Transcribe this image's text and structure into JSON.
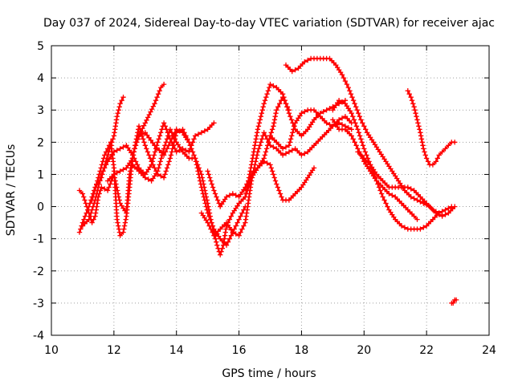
{
  "chart_data": {
    "type": "scatter",
    "title": "Day 037 of 2024, Sidereal Day-to-day VTEC variation (SDTVAR) for receiver ajac",
    "xlabel": "GPS time / hours",
    "ylabel": "SDTVAR / TECUs",
    "xlim": [
      10,
      24
    ],
    "ylim": [
      -4,
      5
    ],
    "xticks": [
      10,
      12,
      14,
      16,
      18,
      20,
      22,
      24
    ],
    "yticks": [
      -4,
      -3,
      -2,
      -1,
      0,
      1,
      2,
      3,
      4,
      5
    ],
    "grid": true,
    "marker": "+",
    "color": "#ff0000",
    "series": [
      {
        "name": "s1",
        "x": [
          10.9,
          11.0,
          11.2,
          11.4,
          11.6,
          11.8,
          12.0,
          12.1,
          12.2,
          12.3
        ],
        "y": [
          -0.8,
          -0.5,
          0.0,
          0.6,
          0.9,
          1.6,
          2.2,
          2.8,
          3.2,
          3.4
        ]
      },
      {
        "name": "s2",
        "x": [
          10.9,
          11.0,
          11.1,
          11.2,
          11.3,
          11.4,
          11.5,
          11.6,
          11.8,
          12.0,
          12.2,
          12.4,
          12.5,
          12.7,
          13.0,
          13.3,
          13.5,
          13.6
        ],
        "y": [
          0.5,
          0.4,
          0.1,
          -0.2,
          -0.5,
          -0.3,
          0.3,
          0.6,
          0.5,
          1.0,
          0.1,
          -0.2,
          1.0,
          2.0,
          2.6,
          3.2,
          3.7,
          3.8
        ]
      },
      {
        "name": "s3",
        "x": [
          11.0,
          11.2,
          11.4,
          11.6,
          11.8,
          12.0,
          12.2,
          12.4,
          12.6,
          12.8,
          13.0,
          13.2,
          13.4,
          13.6,
          13.8,
          14.0,
          14.2,
          14.4,
          14.6,
          14.8,
          15.0,
          15.2
        ],
        "y": [
          -0.6,
          -0.4,
          0.2,
          1.0,
          1.4,
          1.7,
          1.8,
          1.9,
          1.6,
          1.2,
          1.0,
          1.3,
          2.0,
          2.6,
          2.1,
          1.7,
          1.8,
          1.7,
          2.2,
          2.3,
          2.4,
          2.6
        ]
      },
      {
        "name": "s4",
        "x": [
          11.3,
          11.5,
          11.7,
          11.9,
          12.0,
          12.1,
          12.2,
          12.3,
          12.4,
          12.5,
          12.6,
          12.8,
          13.0,
          13.3,
          13.6,
          13.8,
          14.0,
          14.2,
          14.4
        ],
        "y": [
          0.2,
          0.9,
          1.6,
          2.0,
          1.2,
          -0.4,
          -0.9,
          -0.8,
          -0.3,
          0.6,
          1.6,
          2.2,
          2.3,
          1.9,
          1.6,
          2.0,
          2.4,
          2.3,
          2.0
        ]
      },
      {
        "name": "s5",
        "x": [
          11.8,
          12.0,
          12.2,
          12.4,
          12.6,
          12.8,
          13.0,
          13.2,
          13.4,
          13.6,
          13.8,
          14.0,
          14.2,
          14.4,
          14.6,
          14.8,
          15.0,
          15.2,
          15.4,
          15.6,
          15.8,
          16.0,
          16.2
        ],
        "y": [
          0.8,
          1.0,
          1.1,
          1.2,
          1.5,
          2.5,
          1.9,
          1.4,
          1.0,
          0.9,
          1.5,
          2.3,
          2.4,
          2.0,
          1.5,
          0.6,
          -0.2,
          -0.7,
          -1.0,
          -1.2,
          -0.8,
          -0.4,
          0.0
        ]
      },
      {
        "name": "s6",
        "x": [
          12.6,
          12.8,
          13.0,
          13.2,
          13.4,
          13.6,
          13.8,
          14.0,
          14.2,
          14.4,
          14.6,
          14.8,
          15.0,
          15.1,
          15.2,
          15.3,
          15.4,
          15.5,
          15.6,
          15.8,
          16.0
        ],
        "y": [
          1.3,
          1.1,
          0.9,
          0.8,
          1.1,
          1.8,
          2.4,
          2.0,
          1.7,
          1.5,
          1.5,
          1.0,
          0.1,
          -0.4,
          -0.8,
          -1.2,
          -1.5,
          -1.2,
          -0.6,
          -0.2,
          0.1
        ]
      },
      {
        "name": "s7",
        "x": [
          14.8,
          15.0,
          15.2,
          15.4,
          15.6,
          15.8,
          16.0,
          16.2,
          16.4,
          16.6,
          16.8,
          17.0,
          17.2,
          17.4,
          17.6,
          17.8,
          18.0,
          18.2,
          18.4,
          18.6,
          18.8,
          19.0,
          19.2,
          19.4,
          19.6
        ],
        "y": [
          -0.2,
          -0.5,
          -0.9,
          -0.7,
          -0.5,
          -0.8,
          -0.9,
          -0.5,
          0.8,
          1.7,
          2.3,
          1.9,
          1.8,
          1.6,
          1.7,
          1.8,
          1.6,
          1.7,
          1.9,
          2.1,
          2.3,
          2.5,
          2.6,
          2.5,
          2.4
        ]
      },
      {
        "name": "s8",
        "x": [
          15.0,
          15.2,
          15.4,
          15.6,
          15.8,
          16.0,
          16.2,
          16.4,
          16.6,
          16.8,
          17.0,
          17.2,
          17.4,
          17.6,
          17.8,
          18.0,
          18.2,
          18.4,
          18.6,
          18.8,
          19.0,
          19.2,
          19.4,
          19.6
        ],
        "y": [
          1.1,
          0.5,
          0.0,
          0.3,
          0.4,
          0.3,
          0.6,
          1.0,
          1.2,
          1.5,
          2.2,
          2.0,
          1.8,
          1.9,
          2.6,
          2.9,
          3.0,
          3.0,
          2.8,
          2.6,
          2.5,
          2.7,
          2.8,
          2.6
        ]
      },
      {
        "name": "s9",
        "x": [
          16.0,
          16.2,
          16.4,
          16.6,
          16.8,
          17.0,
          17.2,
          17.4,
          17.6,
          17.8,
          18.0,
          18.2,
          18.4,
          18.6,
          18.8,
          19.0,
          19.2,
          19.4
        ],
        "y": [
          0.1,
          0.3,
          1.3,
          2.4,
          3.2,
          3.8,
          3.7,
          3.5,
          2.9,
          2.4,
          2.2,
          2.4,
          2.7,
          2.9,
          3.0,
          3.1,
          3.2,
          3.3
        ]
      },
      {
        "name": "s10",
        "x": [
          16.2,
          16.4,
          16.6,
          16.8,
          17.0,
          17.2,
          17.4,
          17.6,
          17.8,
          18.0,
          18.2,
          18.4
        ],
        "y": [
          0.3,
          0.9,
          1.2,
          1.4,
          1.3,
          0.7,
          0.2,
          0.2,
          0.4,
          0.6,
          0.9,
          1.2
        ]
      },
      {
        "name": "s11",
        "x": [
          17.0,
          17.1,
          17.2,
          17.3,
          17.4,
          17.6
        ],
        "y": [
          2.2,
          2.5,
          3.0,
          3.2,
          3.4,
          3.0
        ]
      },
      {
        "name": "s12",
        "x": [
          17.5,
          17.7,
          17.9,
          18.1,
          18.3,
          18.5,
          18.7,
          18.9,
          19.1,
          19.3,
          19.5,
          19.7,
          19.9,
          20.1,
          20.3,
          20.5,
          20.7,
          20.9,
          21.1,
          21.3,
          21.5,
          21.7,
          21.9,
          22.1,
          22.3,
          22.5,
          22.7,
          22.9
        ],
        "y": [
          4.4,
          4.2,
          4.3,
          4.5,
          4.6,
          4.6,
          4.6,
          4.6,
          4.4,
          4.1,
          3.7,
          3.2,
          2.7,
          2.3,
          2.0,
          1.7,
          1.4,
          1.1,
          0.8,
          0.5,
          0.3,
          0.2,
          0.1,
          0.0,
          -0.2,
          -0.3,
          -0.2,
          0.0
        ]
      },
      {
        "name": "s13",
        "x": [
          19.0,
          19.2,
          19.4,
          19.6,
          19.8,
          20.0,
          20.2,
          20.4,
          20.6,
          20.8,
          21.0,
          21.2,
          21.4,
          21.6,
          21.8,
          22.0,
          22.2,
          22.4,
          22.6,
          22.8
        ],
        "y": [
          3.0,
          3.3,
          3.2,
          2.9,
          2.4,
          1.8,
          1.3,
          0.8,
          0.3,
          -0.1,
          -0.4,
          -0.6,
          -0.7,
          -0.7,
          -0.7,
          -0.6,
          -0.4,
          -0.2,
          -0.1,
          0.0
        ]
      },
      {
        "name": "s14",
        "x": [
          19.0,
          19.2,
          19.4,
          19.6,
          19.8,
          20.0,
          20.2,
          20.4,
          20.6,
          20.8,
          21.0,
          21.2,
          21.4,
          21.6,
          21.7
        ],
        "y": [
          2.7,
          2.4,
          2.4,
          2.2,
          1.8,
          1.4,
          1.1,
          0.8,
          0.6,
          0.4,
          0.3,
          0.1,
          -0.1,
          -0.3,
          -0.4
        ]
      },
      {
        "name": "s15",
        "x": [
          19.8,
          20.0,
          20.2,
          20.4,
          20.6,
          20.8,
          21.0,
          21.2,
          21.4,
          21.6,
          21.8,
          22.0,
          22.2,
          22.4
        ],
        "y": [
          1.7,
          1.5,
          1.3,
          1.0,
          0.8,
          0.6,
          0.6,
          0.6,
          0.6,
          0.5,
          0.3,
          0.1,
          -0.1,
          -0.2
        ]
      },
      {
        "name": "s16",
        "x": [
          21.4,
          21.5,
          21.6,
          21.7,
          21.8,
          21.9,
          22.0,
          22.1,
          22.2,
          22.3,
          22.4,
          22.5,
          22.6,
          22.7,
          22.8,
          22.9
        ],
        "y": [
          3.6,
          3.4,
          3.1,
          2.7,
          2.3,
          1.8,
          1.5,
          1.3,
          1.3,
          1.4,
          1.6,
          1.7,
          1.8,
          1.9,
          2.0,
          2.0
        ]
      },
      {
        "name": "s17",
        "x": [
          22.8,
          22.85,
          22.9,
          22.95
        ],
        "y": [
          -3.0,
          -3.0,
          -2.9,
          -2.9
        ]
      }
    ]
  }
}
